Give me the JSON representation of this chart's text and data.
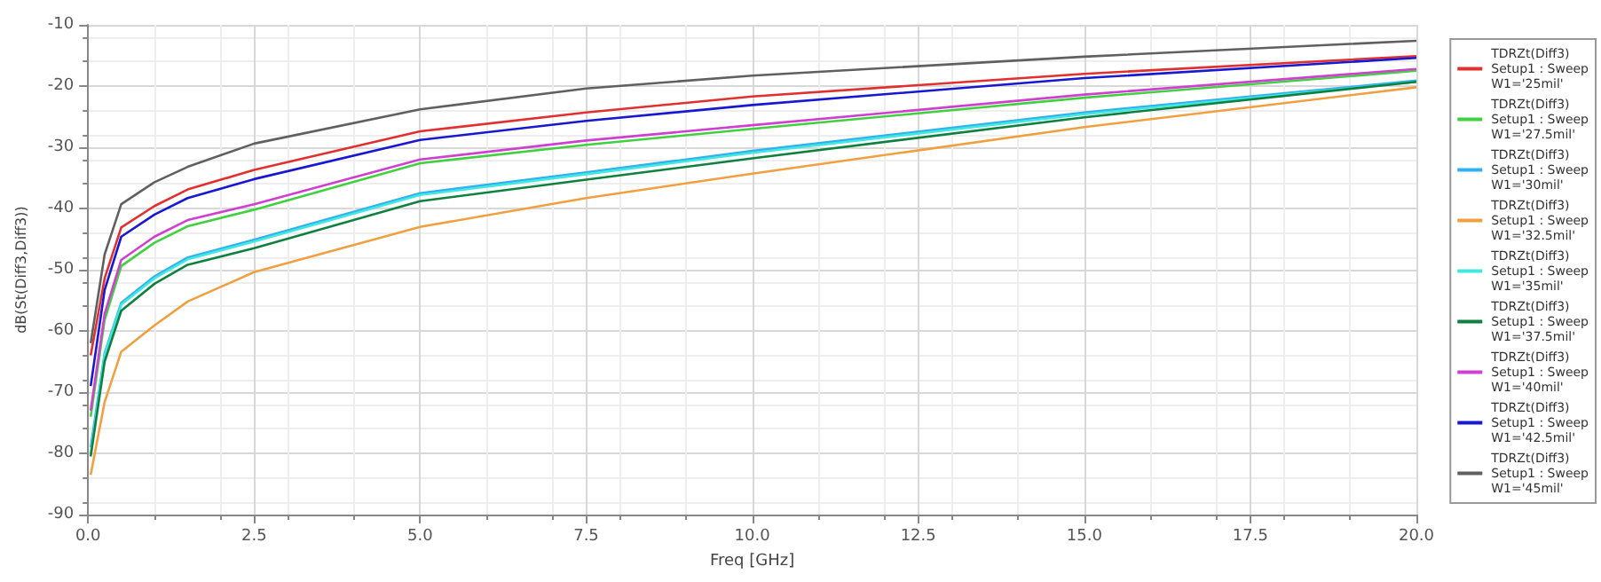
{
  "chart_data": {
    "type": "line",
    "xlabel": "Freq [GHz]",
    "ylabel": "dB(St(Diff3,Diff3))",
    "x": [
      0.04,
      0.25,
      0.5,
      1,
      1.5,
      2.5,
      5,
      7.5,
      10,
      15,
      20
    ],
    "xlim": [
      0,
      20
    ],
    "xticks": [
      {
        "value": 0,
        "label": "0.0"
      },
      {
        "value": 2.5,
        "label": "2.5"
      },
      {
        "value": 5,
        "label": "5.0"
      },
      {
        "value": 7.5,
        "label": "7.5"
      },
      {
        "value": 10,
        "label": "10.0"
      },
      {
        "value": 12.5,
        "label": "12.5"
      },
      {
        "value": 15,
        "label": "15.0"
      },
      {
        "value": 17.5,
        "label": "17.5"
      },
      {
        "value": 20,
        "label": "20.0"
      }
    ],
    "ylim": [
      -90,
      -10
    ],
    "yticks": [
      -90,
      -80,
      -70,
      -60,
      -50,
      -40,
      -30,
      -20,
      -10
    ],
    "grid": true,
    "legend": "right",
    "marker": "none",
    "line_style": "solid",
    "series": [
      {
        "name": "TDRZt(Diff3)\nSetup1 : Sweep\nW1='25mil'",
        "color": "#e03030",
        "values": [
          -64,
          -51.4,
          -43.1,
          -39.6,
          -36.9,
          -33.7,
          -27.4,
          -24.3,
          -21.7,
          -18,
          -15.1
        ]
      },
      {
        "name": "TDRZt(Diff3)\nSetup1 : Sweep\nW1='27.5mil'",
        "color": "#40d040",
        "values": [
          -74,
          -58.2,
          -49.4,
          -45.6,
          -42.9,
          -40.2,
          -32.6,
          -29.6,
          -27,
          -21.9,
          -17.5
        ]
      },
      {
        "name": "TDRZt(Diff3)\nSetup1 : Sweep\nW1='30mil'",
        "color": "#30b0f0",
        "values": [
          -79,
          -63.6,
          -55.4,
          -51.1,
          -48,
          -45.1,
          -37.5,
          -34.1,
          -30.6,
          -24.3,
          -19.1
        ]
      },
      {
        "name": "TDRZt(Diff3)\nSetup1 : Sweep\nW1='32.5mil'",
        "color": "#f0a040",
        "values": [
          -83.5,
          -71.6,
          -63.4,
          -59.1,
          -55.2,
          -50.4,
          -43,
          -38.3,
          -34.3,
          -26.7,
          -20.2
        ]
      },
      {
        "name": "TDRZt(Diff3)\nSetup1 : Sweep\nW1='35mil'",
        "color": "#40e8e0",
        "values": [
          -80,
          -63.9,
          -55.7,
          -51.4,
          -48.3,
          -45.4,
          -37.8,
          -34.4,
          -30.9,
          -24.6,
          -19.3
        ]
      },
      {
        "name": "TDRZt(Diff3)\nSetup1 : Sweep\nW1='37.5mil'",
        "color": "#108040",
        "values": [
          -80.5,
          -65,
          -56.7,
          -52.3,
          -49.2,
          -46.5,
          -38.8,
          -35.3,
          -31.8,
          -25.1,
          -19.3
        ]
      },
      {
        "name": "TDRZt(Diff3)\nSetup1 : Sweep\nW1='40mil'",
        "color": "#d040d0",
        "values": [
          -73,
          -57.2,
          -48.4,
          -44.6,
          -41.9,
          -39.3,
          -32,
          -28.9,
          -26.4,
          -21.4,
          -17.2
        ]
      },
      {
        "name": "TDRZt(Diff3)\nSetup1 : Sweep\nW1='42.5mil'",
        "color": "#1818d0",
        "values": [
          -69,
          -53.3,
          -44.6,
          -41,
          -38.3,
          -35.2,
          -28.8,
          -25.7,
          -23.1,
          -18.7,
          -15.4
        ]
      },
      {
        "name": "TDRZt(Diff3)\nSetup1 : Sweep\nW1='45mil'",
        "color": "#606060",
        "values": [
          -62,
          -47.5,
          -39.3,
          -35.7,
          -33.2,
          -29.4,
          -23.8,
          -20.4,
          -18.3,
          -15.2,
          -12.6
        ]
      }
    ]
  }
}
